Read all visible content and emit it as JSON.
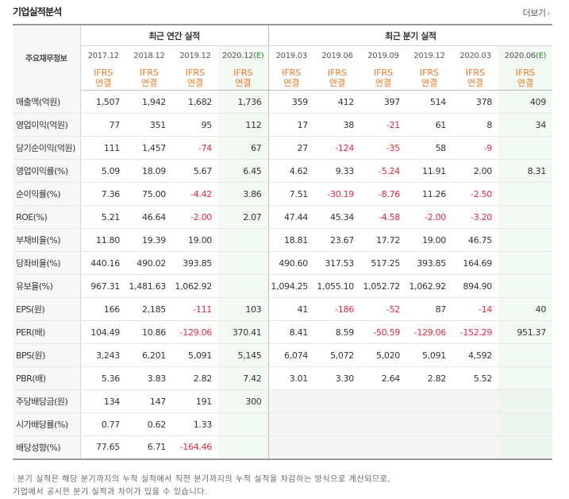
{
  "header": {
    "title": "기업실적분석",
    "more_label": "더보기"
  },
  "table": {
    "rowhead_label": "주요재무정보",
    "group_annual": "최근 연간 실적",
    "group_quarter": "최근 분기 실적",
    "periods": [
      "2017.12",
      "2018.12",
      "2019.12",
      "2020.12",
      "2019.03",
      "2019.06",
      "2019.09",
      "2019.12",
      "2020.03",
      "2020.06"
    ],
    "estimate_marker": "(E)",
    "ifrs_label": "IFRS",
    "ifrs_sub": "연결",
    "rows": [
      {
        "label": "매출액(억원)",
        "cells": [
          "1,507",
          "1,942",
          "1,682",
          "1,736",
          "359",
          "412",
          "397",
          "514",
          "378",
          "409"
        ]
      },
      {
        "label": "영업이익(억원)",
        "cells": [
          "77",
          "351",
          "95",
          "112",
          "17",
          "38",
          "-21",
          "61",
          "8",
          "34"
        ]
      },
      {
        "label": "당기순이익(억원)",
        "cells": [
          "111",
          "1,457",
          "-74",
          "67",
          "27",
          "-124",
          "-35",
          "58",
          "-9",
          ""
        ]
      },
      {
        "label": "영업이익률(%)",
        "cells": [
          "5.09",
          "18.09",
          "5.67",
          "6.45",
          "4.62",
          "9.33",
          "-5.24",
          "11.91",
          "2.00",
          "8.31"
        ]
      },
      {
        "label": "순이익률(%)",
        "cells": [
          "7.36",
          "75.00",
          "-4.42",
          "3.86",
          "7.51",
          "-30.19",
          "-8.76",
          "11.26",
          "-2.50",
          ""
        ]
      },
      {
        "label": "ROE(%)",
        "cells": [
          "5.21",
          "46.64",
          "-2.00",
          "2.07",
          "47.44",
          "45.34",
          "-4.58",
          "-2.00",
          "-3.20",
          ""
        ]
      },
      {
        "label": "부채비율(%)",
        "cells": [
          "11.80",
          "19.39",
          "19.00",
          "",
          "18.81",
          "23.67",
          "17.72",
          "19.00",
          "46.75",
          ""
        ]
      },
      {
        "label": "당좌비율(%)",
        "cells": [
          "440.16",
          "490.02",
          "393.85",
          "",
          "490.60",
          "317.53",
          "517.25",
          "393.85",
          "164.69",
          ""
        ]
      },
      {
        "label": "유보율(%)",
        "cells": [
          "967.31",
          "1,481.63",
          "1,062.92",
          "",
          "1,094.25",
          "1,055.10",
          "1,052.72",
          "1,062.92",
          "894.90",
          ""
        ]
      },
      {
        "label": "EPS(원)",
        "cells": [
          "166",
          "2,185",
          "-111",
          "103",
          "41",
          "-186",
          "-52",
          "87",
          "-14",
          "40"
        ]
      },
      {
        "label": "PER(배)",
        "cells": [
          "104.49",
          "10.86",
          "-129.06",
          "370.41",
          "8.41",
          "8.59",
          "-50.59",
          "-129.06",
          "-152.29",
          "951.37"
        ]
      },
      {
        "label": "BPS(원)",
        "cells": [
          "3,243",
          "6,201",
          "5,091",
          "5,145",
          "6,074",
          "5,072",
          "5,020",
          "5,091",
          "4,592",
          ""
        ]
      },
      {
        "label": "PBR(배)",
        "cells": [
          "5.36",
          "3.83",
          "2.82",
          "7.42",
          "3.01",
          "3.30",
          "2.64",
          "2.82",
          "5.52",
          ""
        ]
      },
      {
        "label": "주당배당금(원)",
        "cells": [
          "134",
          "147",
          "191",
          "300",
          "",
          "",
          "",
          "",
          "",
          ""
        ]
      },
      {
        "label": "시가배당률(%)",
        "cells": [
          "0.77",
          "0.62",
          "1.33",
          "",
          "",
          "",
          "",
          "",
          "",
          ""
        ]
      },
      {
        "label": "배당성향(%)",
        "cells": [
          "77.65",
          "6.71",
          "-164.46",
          "",
          "",
          "",
          "",
          "",
          "",
          ""
        ]
      }
    ]
  },
  "footnote": {
    "line1": "분기 실적은 해당 분기까지의 누적 실적에서 직전 분기까지의 누적 실적을 차감하는 방식으로 계산되므로,",
    "line2": "기업에서 공시한 분기 실적과 차이가 있을 수 있습니다."
  },
  "colors": {
    "negative": "#e8273a",
    "ifrs": "#f47920",
    "estimate_marker": "#2e8b2e"
  }
}
